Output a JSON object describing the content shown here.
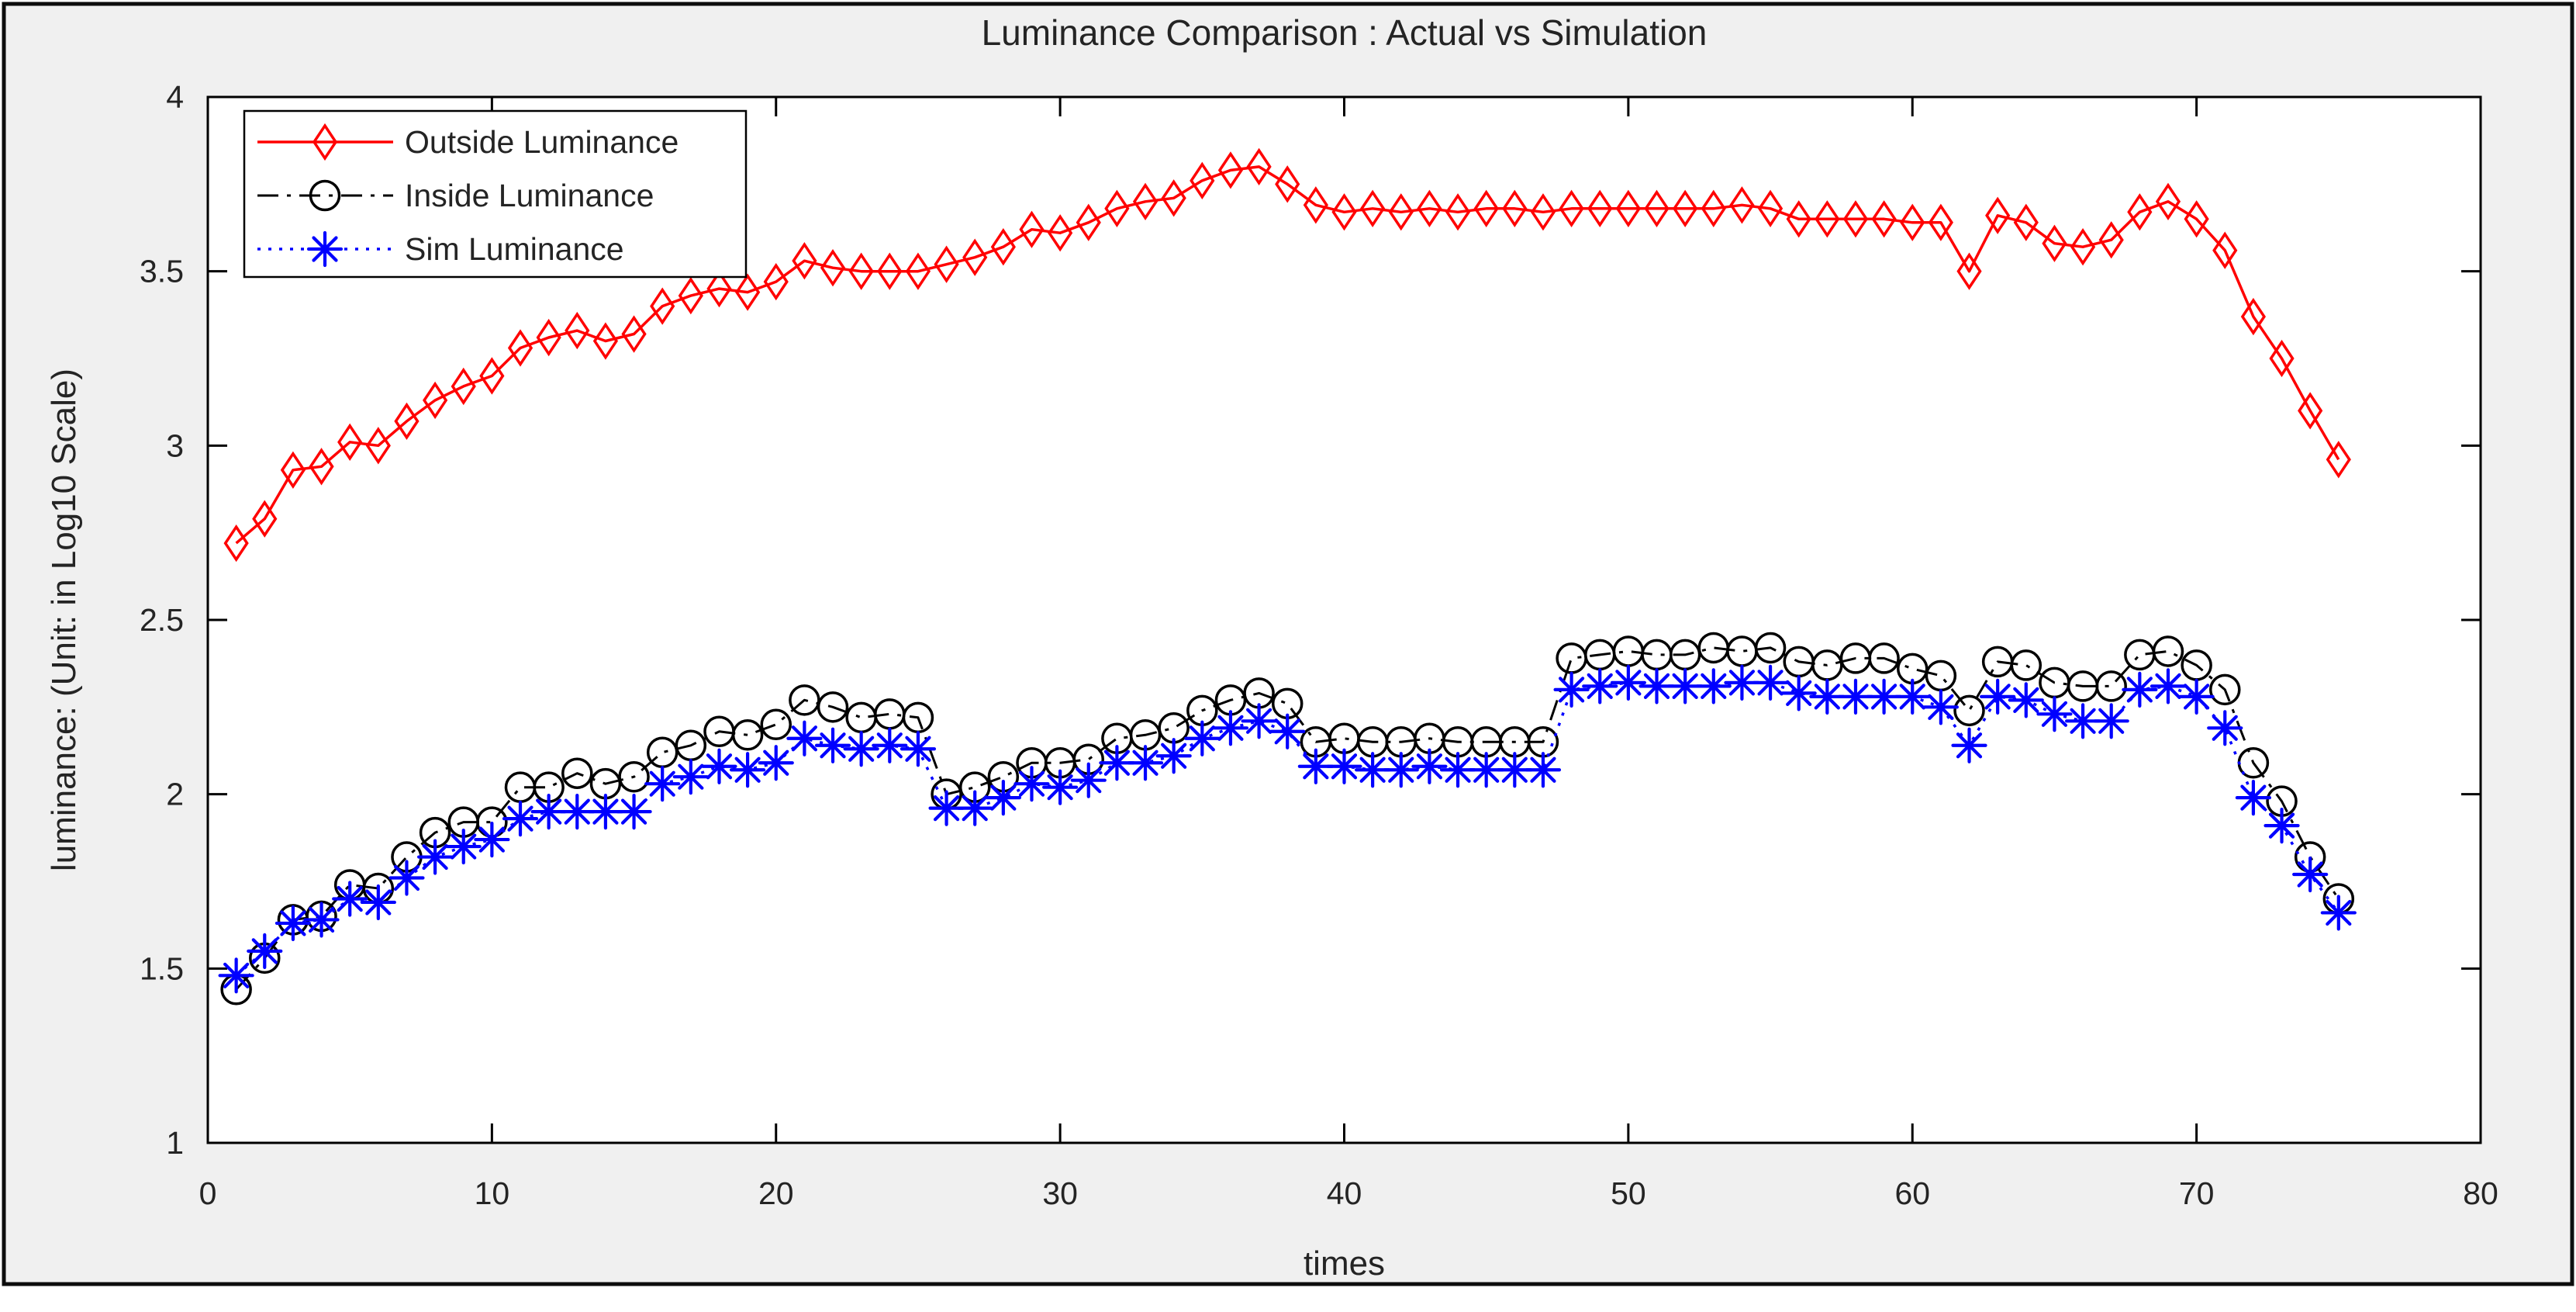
{
  "chart_data": {
    "type": "line",
    "title": "Luminance Comparison : Actual vs Simulation",
    "xlabel": "times",
    "ylabel": "luminance: (Unit: in Log10 Scale)",
    "xlim": [
      0,
      80
    ],
    "ylim": [
      1,
      4
    ],
    "xticks": [
      0,
      10,
      20,
      30,
      40,
      50,
      60,
      70,
      80
    ],
    "yticks": [
      1,
      1.5,
      2,
      2.5,
      3,
      3.5,
      4
    ],
    "grid": false,
    "legend_position": "top-left",
    "x": [
      1,
      2,
      3,
      4,
      5,
      6,
      7,
      8,
      9,
      10,
      11,
      12,
      13,
      14,
      15,
      16,
      17,
      18,
      19,
      20,
      21,
      22,
      23,
      24,
      25,
      26,
      27,
      28,
      29,
      30,
      31,
      32,
      33,
      34,
      35,
      36,
      37,
      38,
      39,
      40,
      41,
      42,
      43,
      44,
      45,
      46,
      47,
      48,
      49,
      50,
      51,
      52,
      53,
      54,
      55,
      56,
      57,
      58,
      59,
      60,
      61,
      62,
      63,
      64,
      65,
      66,
      67,
      68,
      69,
      70,
      71,
      72,
      73,
      74,
      75
    ],
    "series": [
      {
        "name": "Outside Luminance",
        "color": "#ff0000",
        "line_style": "solid",
        "marker": "diamond",
        "values": [
          2.72,
          2.79,
          2.93,
          2.94,
          3.01,
          3.0,
          3.07,
          3.13,
          3.17,
          3.2,
          3.28,
          3.31,
          3.33,
          3.3,
          3.32,
          3.4,
          3.43,
          3.45,
          3.44,
          3.47,
          3.53,
          3.51,
          3.5,
          3.5,
          3.5,
          3.52,
          3.54,
          3.57,
          3.62,
          3.61,
          3.64,
          3.68,
          3.7,
          3.71,
          3.76,
          3.79,
          3.8,
          3.75,
          3.69,
          3.67,
          3.68,
          3.67,
          3.68,
          3.67,
          3.68,
          3.68,
          3.67,
          3.68,
          3.68,
          3.68,
          3.68,
          3.68,
          3.68,
          3.69,
          3.68,
          3.65,
          3.65,
          3.65,
          3.65,
          3.64,
          3.64,
          3.5,
          3.66,
          3.64,
          3.58,
          3.57,
          3.59,
          3.67,
          3.7,
          3.65,
          3.56,
          3.37,
          3.25,
          3.1,
          2.96
        ]
      },
      {
        "name": "Inside Luminance",
        "color": "#000000",
        "line_style": "dash-dot",
        "marker": "circle",
        "values": [
          1.44,
          1.53,
          1.64,
          1.65,
          1.74,
          1.73,
          1.82,
          1.89,
          1.92,
          1.92,
          2.02,
          2.02,
          2.06,
          2.03,
          2.05,
          2.12,
          2.14,
          2.18,
          2.17,
          2.2,
          2.27,
          2.25,
          2.22,
          2.23,
          2.22,
          2.0,
          2.02,
          2.05,
          2.09,
          2.09,
          2.1,
          2.16,
          2.17,
          2.19,
          2.24,
          2.27,
          2.29,
          2.26,
          2.15,
          2.16,
          2.15,
          2.15,
          2.16,
          2.15,
          2.15,
          2.15,
          2.15,
          2.39,
          2.4,
          2.41,
          2.4,
          2.4,
          2.42,
          2.41,
          2.42,
          2.38,
          2.37,
          2.39,
          2.39,
          2.36,
          2.34,
          2.24,
          2.38,
          2.37,
          2.32,
          2.31,
          2.31,
          2.4,
          2.41,
          2.37,
          2.3,
          2.09,
          1.98,
          1.82,
          1.7
        ]
      },
      {
        "name": "Sim Luminance",
        "color": "#0000ff",
        "line_style": "dotted",
        "marker": "asterisk",
        "values": [
          1.48,
          1.55,
          1.63,
          1.64,
          1.7,
          1.69,
          1.76,
          1.82,
          1.85,
          1.87,
          1.93,
          1.95,
          1.95,
          1.95,
          1.95,
          2.03,
          2.05,
          2.08,
          2.07,
          2.09,
          2.16,
          2.14,
          2.13,
          2.14,
          2.13,
          1.96,
          1.96,
          1.99,
          2.03,
          2.02,
          2.04,
          2.09,
          2.09,
          2.11,
          2.16,
          2.19,
          2.21,
          2.18,
          2.08,
          2.08,
          2.07,
          2.07,
          2.08,
          2.07,
          2.07,
          2.07,
          2.07,
          2.3,
          2.31,
          2.32,
          2.31,
          2.31,
          2.31,
          2.32,
          2.32,
          2.29,
          2.28,
          2.28,
          2.28,
          2.28,
          2.25,
          2.14,
          2.28,
          2.27,
          2.23,
          2.21,
          2.21,
          2.3,
          2.31,
          2.28,
          2.19,
          1.99,
          1.91,
          1.77,
          1.66
        ]
      }
    ]
  },
  "colors": {
    "figure_background": "#f0f0f0",
    "plot_background": "#ffffff",
    "axis": "#000000",
    "text": "#242424",
    "frame_border": "#0d0d0d",
    "outside_series": "#ff0000",
    "inside_series": "#000000",
    "sim_series": "#0000ff"
  }
}
